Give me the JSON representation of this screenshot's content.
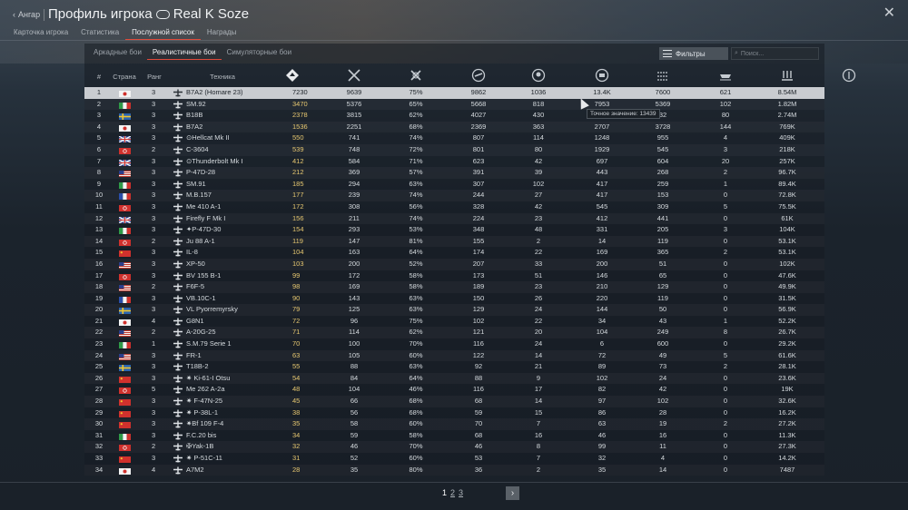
{
  "header": {
    "back_label": "Ангар",
    "title": "Профиль игрока",
    "player_name": "Real K Soze"
  },
  "main_tabs": [
    "Карточка игрока",
    "Статистика",
    "Послужной список",
    "Награды"
  ],
  "mode_tabs": [
    "Аркадные бои",
    "Реалистичные бои",
    "Симуляторные бои"
  ],
  "filters_label": "Фильтры",
  "search_placeholder": "Поиск...",
  "columns": {
    "num": "#",
    "country": "Страна",
    "rank": "Ранг",
    "vehicle": "Техника",
    "stat_icons": [
      "rp-icon",
      "battles-icon",
      "wins-icon",
      "win-rate-icon",
      "air-kills-icon",
      "deaths-icon",
      "ground-kills-icon",
      "naval-kills-icon",
      "unknown-stat-icon",
      "sl-earned-icon"
    ]
  },
  "tooltip": "Точное значение: 13439",
  "pagination": {
    "pages": [
      "1",
      "2",
      "3"
    ],
    "current": "1",
    "next_label": "›"
  },
  "colors": {
    "accent": "#e04a3a",
    "rp_yellow": "#e6c770",
    "selected_row": "#c9ccd0"
  },
  "rows": [
    {
      "n": "1",
      "country": "japan",
      "rank": "3",
      "type": "plane",
      "name": "B7A2 (Homare 23)",
      "v": [
        "7230",
        "9639",
        "75%",
        "9862",
        "1036",
        "13.4K",
        "7600",
        "621",
        "8.54M"
      ]
    },
    {
      "n": "2",
      "country": "italy",
      "rank": "3",
      "type": "plane",
      "name": "SM.92",
      "v": [
        "3470",
        "5376",
        "65%",
        "5668",
        "818",
        "7953",
        "5369",
        "102",
        "1.82M"
      ]
    },
    {
      "n": "3",
      "country": "sweden",
      "rank": "3",
      "type": "plane",
      "name": "B18B",
      "v": [
        "2378",
        "3815",
        "62%",
        "4027",
        "430",
        "",
        "32",
        "80",
        "2.74M"
      ]
    },
    {
      "n": "4",
      "country": "japan",
      "rank": "3",
      "type": "plane",
      "name": "B7A2",
      "v": [
        "1536",
        "2251",
        "68%",
        "2369",
        "363",
        "2707",
        "3728",
        "144",
        "769K"
      ]
    },
    {
      "n": "5",
      "country": "uk",
      "rank": "3",
      "type": "plane",
      "name": "⊙Hellcat Mk II",
      "v": [
        "550",
        "741",
        "74%",
        "807",
        "114",
        "1248",
        "955",
        "4",
        "409K"
      ]
    },
    {
      "n": "6",
      "country": "ussr",
      "rank": "2",
      "type": "plane",
      "name": "C-3604",
      "v": [
        "539",
        "748",
        "72%",
        "801",
        "80",
        "1929",
        "545",
        "3",
        "218K"
      ]
    },
    {
      "n": "7",
      "country": "uk",
      "rank": "3",
      "type": "plane",
      "name": "⊙Thunderbolt Mk I",
      "v": [
        "412",
        "584",
        "71%",
        "623",
        "42",
        "697",
        "604",
        "20",
        "257K"
      ]
    },
    {
      "n": "8",
      "country": "usa",
      "rank": "3",
      "type": "plane",
      "name": "P-47D-28",
      "v": [
        "212",
        "369",
        "57%",
        "391",
        "39",
        "443",
        "268",
        "2",
        "96.7K"
      ]
    },
    {
      "n": "9",
      "country": "italy",
      "rank": "3",
      "type": "plane",
      "name": "SM.91",
      "v": [
        "185",
        "294",
        "63%",
        "307",
        "102",
        "417",
        "259",
        "1",
        "89.4K"
      ]
    },
    {
      "n": "10",
      "country": "france",
      "rank": "3",
      "type": "plane",
      "name": "M.B.157",
      "v": [
        "177",
        "239",
        "74%",
        "244",
        "27",
        "417",
        "153",
        "0",
        "72.8K"
      ]
    },
    {
      "n": "11",
      "country": "ussr",
      "rank": "3",
      "type": "plane",
      "name": "Me 410 A-1",
      "v": [
        "172",
        "308",
        "56%",
        "328",
        "42",
        "545",
        "309",
        "5",
        "75.5K"
      ]
    },
    {
      "n": "12",
      "country": "uk",
      "rank": "3",
      "type": "plane",
      "name": "Firefly F Mk I",
      "v": [
        "156",
        "211",
        "74%",
        "224",
        "23",
        "412",
        "441",
        "0",
        "61K"
      ]
    },
    {
      "n": "13",
      "country": "italy",
      "rank": "3",
      "type": "plane",
      "name": "✦P-47D-30",
      "v": [
        "154",
        "293",
        "53%",
        "348",
        "48",
        "331",
        "205",
        "3",
        "104K"
      ]
    },
    {
      "n": "14",
      "country": "ussr",
      "rank": "2",
      "type": "plane",
      "name": "Ju 88 A-1",
      "v": [
        "119",
        "147",
        "81%",
        "155",
        "2",
        "14",
        "119",
        "0",
        "53.1K"
      ]
    },
    {
      "n": "15",
      "country": "china",
      "rank": "3",
      "type": "plane",
      "name": "IL-8",
      "v": [
        "104",
        "163",
        "64%",
        "174",
        "22",
        "169",
        "365",
        "2",
        "53.1K"
      ]
    },
    {
      "n": "16",
      "country": "usa",
      "rank": "3",
      "type": "plane",
      "name": "XP-50",
      "v": [
        "103",
        "200",
        "52%",
        "207",
        "33",
        "200",
        "51",
        "0",
        "102K"
      ]
    },
    {
      "n": "17",
      "country": "ussr",
      "rank": "3",
      "type": "plane",
      "name": "BV 155 B-1",
      "v": [
        "99",
        "172",
        "58%",
        "173",
        "51",
        "146",
        "65",
        "0",
        "47.6K"
      ]
    },
    {
      "n": "18",
      "country": "usa",
      "rank": "2",
      "type": "plane",
      "name": "F6F-5",
      "v": [
        "98",
        "169",
        "58%",
        "189",
        "23",
        "210",
        "129",
        "0",
        "49.9K"
      ]
    },
    {
      "n": "19",
      "country": "france",
      "rank": "3",
      "type": "plane",
      "name": "VB.10C-1",
      "v": [
        "90",
        "143",
        "63%",
        "150",
        "26",
        "220",
        "119",
        "0",
        "31.5K"
      ]
    },
    {
      "n": "20",
      "country": "sweden",
      "rank": "3",
      "type": "plane",
      "name": "VL Pyorremyrsky",
      "v": [
        "79",
        "125",
        "63%",
        "129",
        "24",
        "144",
        "50",
        "0",
        "56.9K"
      ]
    },
    {
      "n": "21",
      "country": "japan",
      "rank": "4",
      "type": "plane",
      "name": "G8N1",
      "v": [
        "72",
        "96",
        "75%",
        "102",
        "22",
        "34",
        "43",
        "1",
        "52.2K"
      ]
    },
    {
      "n": "22",
      "country": "usa",
      "rank": "2",
      "type": "plane",
      "name": "A-20G-25",
      "v": [
        "71",
        "114",
        "62%",
        "121",
        "20",
        "104",
        "249",
        "8",
        "26.7K"
      ]
    },
    {
      "n": "23",
      "country": "italy",
      "rank": "1",
      "type": "plane",
      "name": "S.M.79 Serie 1",
      "v": [
        "70",
        "100",
        "70%",
        "116",
        "24",
        "6",
        "600",
        "0",
        "29.2K"
      ]
    },
    {
      "n": "24",
      "country": "usa",
      "rank": "3",
      "type": "plane",
      "name": "FR-1",
      "v": [
        "63",
        "105",
        "60%",
        "122",
        "14",
        "72",
        "49",
        "5",
        "61.6K"
      ]
    },
    {
      "n": "25",
      "country": "sweden",
      "rank": "3",
      "type": "plane",
      "name": "T18B-2",
      "v": [
        "55",
        "88",
        "63%",
        "92",
        "21",
        "89",
        "73",
        "2",
        "28.1K"
      ]
    },
    {
      "n": "26",
      "country": "china",
      "rank": "3",
      "type": "plane",
      "name": "✷ Ki-61-I Otsu",
      "v": [
        "54",
        "84",
        "64%",
        "88",
        "9",
        "102",
        "24",
        "0",
        "23.6K"
      ]
    },
    {
      "n": "27",
      "country": "ussr",
      "rank": "5",
      "type": "plane",
      "name": "Me 262 A-2a",
      "v": [
        "48",
        "104",
        "46%",
        "116",
        "17",
        "82",
        "42",
        "0",
        "19K"
      ]
    },
    {
      "n": "28",
      "country": "china",
      "rank": "3",
      "type": "plane",
      "name": "✷ F-47N-25",
      "v": [
        "45",
        "66",
        "68%",
        "68",
        "14",
        "97",
        "102",
        "0",
        "32.6K"
      ]
    },
    {
      "n": "29",
      "country": "china",
      "rank": "3",
      "type": "plane",
      "name": "✷ P-38L-1",
      "v": [
        "38",
        "56",
        "68%",
        "59",
        "15",
        "86",
        "28",
        "0",
        "16.2K"
      ]
    },
    {
      "n": "30",
      "country": "china",
      "rank": "3",
      "type": "plane",
      "name": "✷Bf 109 F-4",
      "v": [
        "35",
        "58",
        "60%",
        "70",
        "7",
        "63",
        "19",
        "2",
        "27.2K"
      ]
    },
    {
      "n": "31",
      "country": "italy",
      "rank": "3",
      "type": "plane",
      "name": "F.C.20 bis",
      "v": [
        "34",
        "59",
        "58%",
        "68",
        "16",
        "46",
        "16",
        "0",
        "11.3K"
      ]
    },
    {
      "n": "32",
      "country": "ussr",
      "rank": "2",
      "type": "plane",
      "name": "✠Yak-1B",
      "v": [
        "32",
        "46",
        "70%",
        "46",
        "8",
        "99",
        "11",
        "0",
        "27.3K"
      ]
    },
    {
      "n": "33",
      "country": "china",
      "rank": "3",
      "type": "plane",
      "name": "✷ P-51C-11",
      "v": [
        "31",
        "52",
        "60%",
        "53",
        "7",
        "32",
        "4",
        "0",
        "14.2K"
      ]
    },
    {
      "n": "34",
      "country": "japan",
      "rank": "4",
      "type": "plane",
      "name": "A7M2",
      "v": [
        "28",
        "35",
        "80%",
        "36",
        "2",
        "35",
        "14",
        "0",
        "7487"
      ]
    }
  ]
}
